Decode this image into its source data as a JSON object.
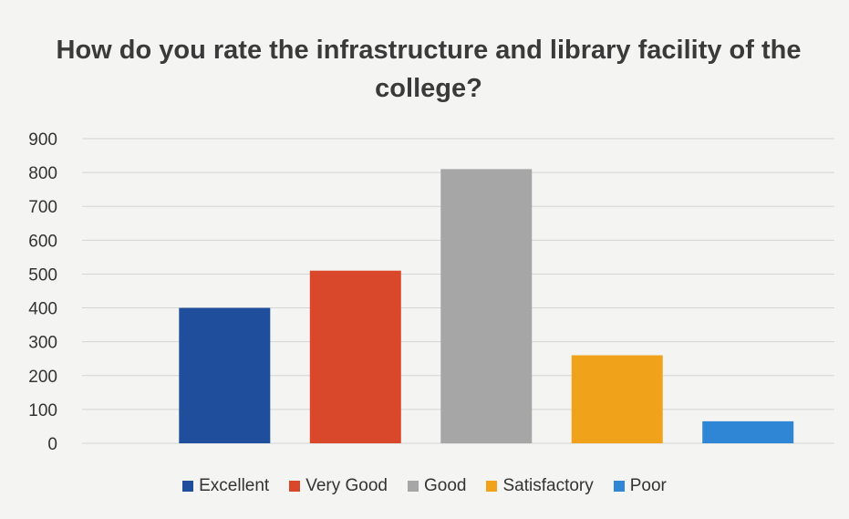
{
  "chart_data": {
    "type": "bar",
    "title": "How do you rate the infrastructure and library facility of the college?",
    "xlabel": "",
    "ylabel": "",
    "ylim": [
      0,
      900
    ],
    "yticks": [
      0,
      100,
      200,
      300,
      400,
      500,
      600,
      700,
      800,
      900
    ],
    "grid": true,
    "legend_position": "bottom",
    "categories": [
      "Excellent",
      "Very Good",
      "Good",
      "Satisfactory",
      "Poor"
    ],
    "values": [
      400,
      510,
      810,
      260,
      65
    ],
    "colors": [
      "#1f4e9c",
      "#d9482b",
      "#a6a6a6",
      "#f0a21b",
      "#2e86d4"
    ]
  }
}
